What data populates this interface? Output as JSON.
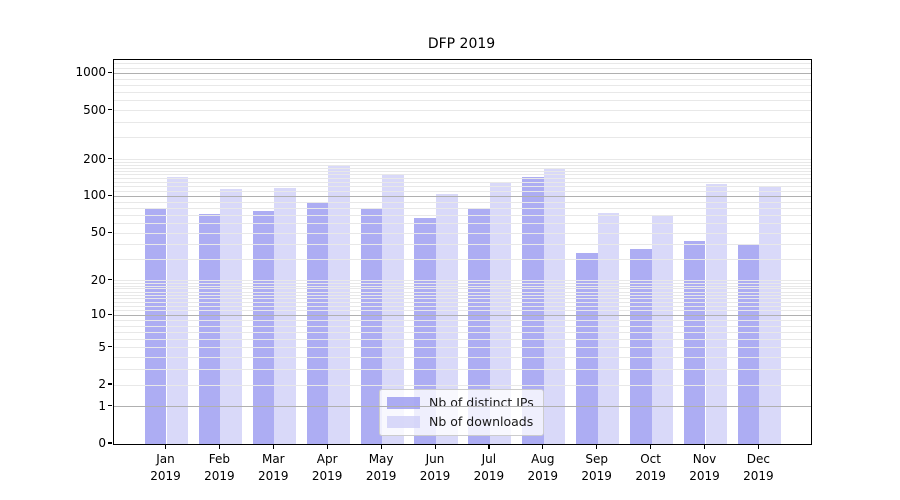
{
  "chart_data": {
    "type": "bar",
    "title": "DFP 2019",
    "categories": [
      "Jan",
      "Feb",
      "Mar",
      "Apr",
      "May",
      "Jun",
      "Jul",
      "Aug",
      "Sep",
      "Oct",
      "Nov",
      "Dec"
    ],
    "category_year": "2019",
    "series": [
      {
        "name": "Nb of distinct IPs",
        "color": "#9999f0",
        "values": [
          81,
          72,
          76,
          89,
          80,
          67,
          80,
          144,
          34,
          37,
          43,
          40
        ]
      },
      {
        "name": "Nb of downloads",
        "color": "#d0d0f7",
        "values": [
          143,
          116,
          118,
          176,
          154,
          105,
          132,
          171,
          73,
          70,
          127,
          122
        ]
      }
    ],
    "y_ticks": [
      0,
      1,
      2,
      5,
      10,
      20,
      50,
      100,
      200,
      500,
      1000
    ],
    "y_scale": "log10(value+1)",
    "ylim": [
      0,
      1290
    ],
    "grid": "major and minor horizontal gridlines",
    "major_grid_values": [
      1,
      10,
      100,
      1000
    ],
    "major_grid_color": "#b0b0b0",
    "minor_grid_color": "#e8e8e8",
    "legend_position": "lower center",
    "bar_opacity": 0.8
  }
}
